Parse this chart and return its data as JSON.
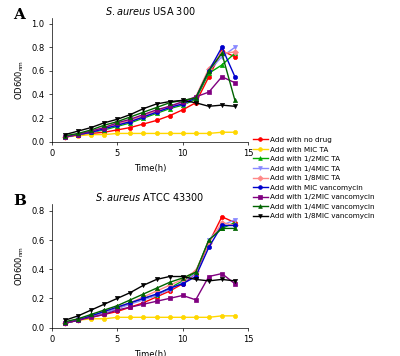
{
  "title_A": "S. aureus USA 300",
  "title_B": "S. aureus ATCC 43300",
  "xlabel": "Time(h)",
  "ylabel": "OD600",
  "time": [
    1,
    2,
    3,
    4,
    5,
    6,
    7,
    8,
    9,
    10,
    11,
    12,
    13,
    14
  ],
  "ylim_A": [
    0,
    1.05
  ],
  "ylim_B": [
    0,
    0.85
  ],
  "yticks_A": [
    0.0,
    0.2,
    0.4,
    0.6,
    0.8,
    1.0
  ],
  "yticks_B": [
    0.0,
    0.2,
    0.4,
    0.6,
    0.8
  ],
  "xticks": [
    0,
    5,
    10,
    15
  ],
  "series": {
    "no_drug": {
      "color": "#FF0000",
      "marker": "o",
      "label": "Add with no drug",
      "A": [
        0.04,
        0.06,
        0.07,
        0.08,
        0.1,
        0.12,
        0.15,
        0.18,
        0.22,
        0.27,
        0.33,
        0.55,
        0.77,
        0.72
      ],
      "B": [
        0.03,
        0.05,
        0.07,
        0.09,
        0.11,
        0.14,
        0.17,
        0.21,
        0.25,
        0.3,
        0.37,
        0.58,
        0.76,
        0.72
      ]
    },
    "MIC_TA": {
      "color": "#FFD700",
      "marker": "o",
      "label": "Add with MIC TA",
      "A": [
        0.04,
        0.05,
        0.06,
        0.06,
        0.07,
        0.07,
        0.07,
        0.07,
        0.07,
        0.07,
        0.07,
        0.07,
        0.08,
        0.08
      ],
      "B": [
        0.03,
        0.05,
        0.06,
        0.06,
        0.07,
        0.07,
        0.07,
        0.07,
        0.07,
        0.07,
        0.07,
        0.07,
        0.08,
        0.08
      ]
    },
    "half_MIC_TA": {
      "color": "#00AA00",
      "marker": "^",
      "label": "Add with 1/2MIC TA",
      "A": [
        0.04,
        0.06,
        0.08,
        0.1,
        0.13,
        0.16,
        0.2,
        0.24,
        0.28,
        0.31,
        0.36,
        0.58,
        0.65,
        0.75
      ],
      "B": [
        0.03,
        0.05,
        0.08,
        0.1,
        0.13,
        0.17,
        0.2,
        0.22,
        0.27,
        0.32,
        0.38,
        0.6,
        0.68,
        0.72
      ]
    },
    "quarter_MIC_TA": {
      "color": "#8888FF",
      "marker": "v",
      "label": "Add with 1/4MIC TA",
      "A": [
        0.04,
        0.06,
        0.08,
        0.11,
        0.14,
        0.17,
        0.21,
        0.25,
        0.29,
        0.32,
        0.37,
        0.6,
        0.72,
        0.8
      ],
      "B": [
        0.03,
        0.06,
        0.08,
        0.1,
        0.13,
        0.16,
        0.19,
        0.22,
        0.26,
        0.31,
        0.37,
        0.6,
        0.7,
        0.74
      ]
    },
    "eighth_MIC_TA": {
      "color": "#FF8888",
      "marker": "D",
      "label": "Add with 1/8MIC TA",
      "A": [
        0.04,
        0.06,
        0.09,
        0.12,
        0.15,
        0.18,
        0.22,
        0.26,
        0.3,
        0.33,
        0.38,
        0.62,
        0.75,
        0.76
      ],
      "B": [
        0.03,
        0.05,
        0.08,
        0.11,
        0.14,
        0.17,
        0.21,
        0.25,
        0.29,
        0.33,
        0.39,
        0.58,
        0.72,
        0.7
      ]
    },
    "MIC_vanc": {
      "color": "#0000CC",
      "marker": "o",
      "label": "Add with MIC vancomycin",
      "A": [
        0.04,
        0.06,
        0.08,
        0.11,
        0.14,
        0.17,
        0.21,
        0.25,
        0.29,
        0.32,
        0.37,
        0.6,
        0.8,
        0.55
      ],
      "B": [
        0.03,
        0.05,
        0.08,
        0.11,
        0.14,
        0.17,
        0.2,
        0.23,
        0.27,
        0.3,
        0.35,
        0.55,
        0.7,
        0.7
      ]
    },
    "half_MIC_vanc": {
      "color": "#800080",
      "marker": "s",
      "label": "Add with 1/2MIC vancomycin",
      "A": [
        0.04,
        0.06,
        0.09,
        0.12,
        0.16,
        0.19,
        0.23,
        0.27,
        0.3,
        0.34,
        0.38,
        0.42,
        0.55,
        0.5
      ],
      "B": [
        0.03,
        0.05,
        0.07,
        0.09,
        0.12,
        0.14,
        0.16,
        0.18,
        0.2,
        0.22,
        0.19,
        0.35,
        0.37,
        0.3
      ]
    },
    "quarter_MIC_vanc": {
      "color": "#006400",
      "marker": "^",
      "label": "Add with 1/4MIC vancomycin",
      "A": [
        0.05,
        0.07,
        0.1,
        0.14,
        0.17,
        0.21,
        0.25,
        0.29,
        0.33,
        0.35,
        0.37,
        0.6,
        0.75,
        0.35
      ],
      "B": [
        0.04,
        0.06,
        0.09,
        0.12,
        0.15,
        0.19,
        0.23,
        0.27,
        0.31,
        0.34,
        0.38,
        0.6,
        0.68,
        0.68
      ]
    },
    "eighth_MIC_vanc": {
      "color": "#000000",
      "marker": "v",
      "label": "Add with 1/8MIC vancomycin",
      "A": [
        0.06,
        0.09,
        0.12,
        0.16,
        0.19,
        0.23,
        0.28,
        0.32,
        0.34,
        0.35,
        0.33,
        0.3,
        0.31,
        0.3
      ],
      "B": [
        0.05,
        0.08,
        0.12,
        0.16,
        0.2,
        0.24,
        0.29,
        0.33,
        0.35,
        0.35,
        0.33,
        0.32,
        0.33,
        0.32
      ]
    }
  }
}
